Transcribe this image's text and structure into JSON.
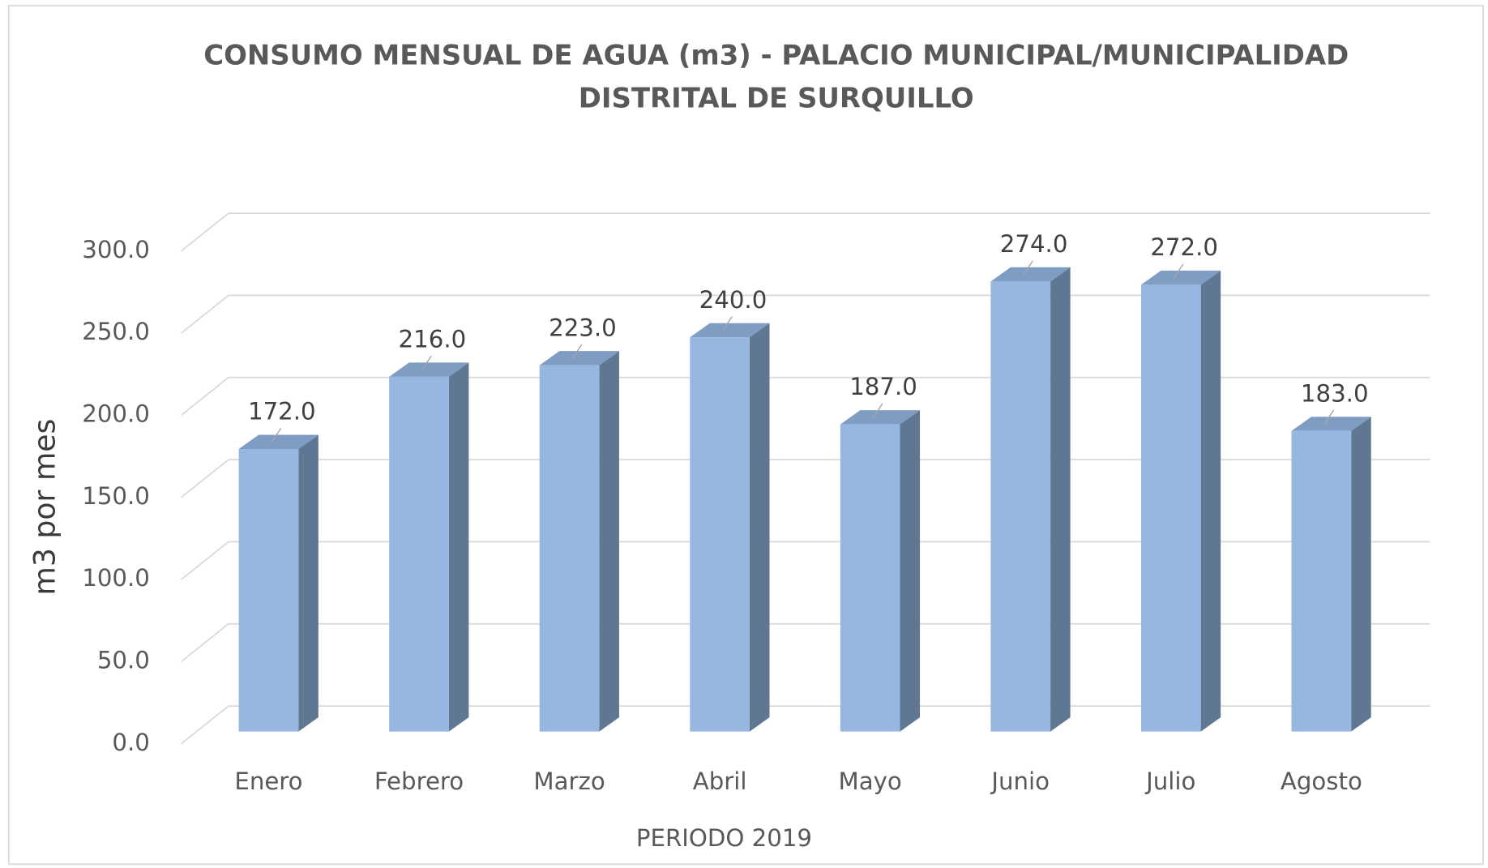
{
  "chart_data": {
    "type": "bar3d",
    "title": [
      "CONSUMO MENSUAL DE AGUA (m3) - PALACIO MUNICIPAL/MUNICIPALIDAD",
      "DISTRITAL DE SURQUILLO"
    ],
    "x_label": "PERIODO 2019",
    "y_label": "m3 por mes",
    "categories": [
      "Enero",
      "Febrero",
      "Marzo",
      "Abril",
      "Mayo",
      "Junio",
      "Julio",
      "Agosto"
    ],
    "values": [
      172,
      216,
      223,
      240,
      187,
      274,
      272,
      183
    ],
    "value_labels": [
      "172.0",
      "216.0",
      "223.0",
      "240.0",
      "187.0",
      "274.0",
      "272.0",
      "183.0"
    ],
    "color": "#97b7e0",
    "ylim": [
      0,
      300
    ],
    "yticks": [
      {
        "value": 0,
        "label": "0.0"
      },
      {
        "value": 50,
        "label": "50.0"
      },
      {
        "value": 100,
        "label": "100.0"
      },
      {
        "value": 150,
        "label": "150.0"
      },
      {
        "value": 200,
        "label": "200.0"
      },
      {
        "value": 250,
        "label": "250.0"
      },
      {
        "value": 300,
        "label": "300.0"
      }
    ],
    "grid": true
  }
}
